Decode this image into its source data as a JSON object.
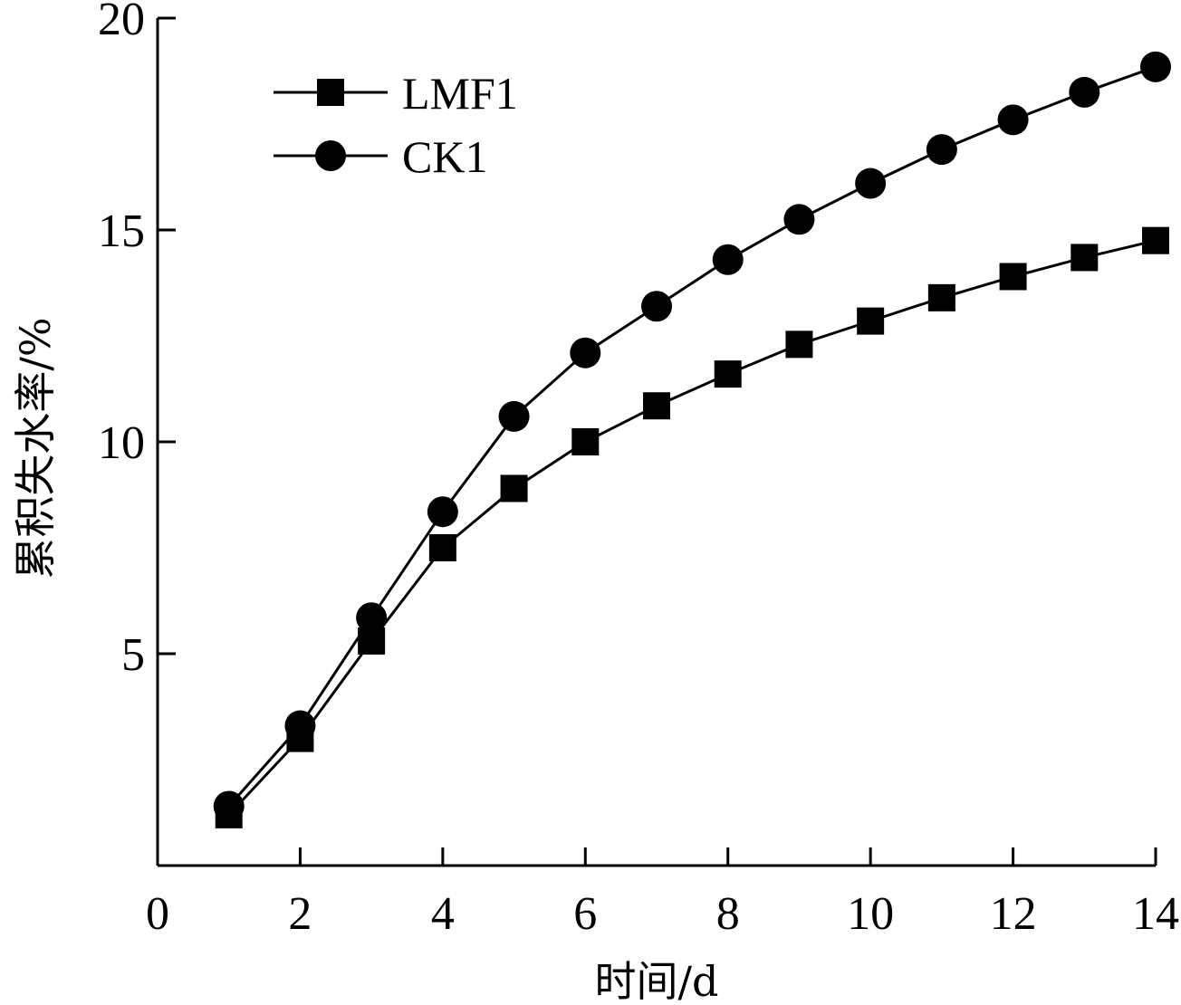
{
  "chart_data": {
    "type": "line",
    "xlabel": "时间/d",
    "ylabel": "累积失水率/%",
    "xlim": [
      0,
      14
    ],
    "ylim": [
      0,
      20
    ],
    "xticks": [
      "0",
      "2",
      "4",
      "6",
      "8",
      "10",
      "12",
      "14"
    ],
    "yticks": [
      "5",
      "10",
      "15",
      "20"
    ],
    "grid": false,
    "legend_position": "top-left",
    "x": [
      1,
      2,
      3,
      4,
      5,
      6,
      7,
      8,
      9,
      10,
      11,
      12,
      13,
      14
    ],
    "series": [
      {
        "name": "LMF1",
        "marker": "square",
        "color": "#000000",
        "values": [
          1.2,
          3.0,
          5.3,
          7.5,
          8.9,
          10.0,
          10.85,
          11.6,
          12.3,
          12.85,
          13.4,
          13.9,
          14.35,
          14.75
        ]
      },
      {
        "name": "CK1",
        "marker": "circle",
        "color": "#000000",
        "values": [
          1.4,
          3.3,
          5.85,
          8.35,
          10.6,
          12.1,
          13.2,
          14.3,
          15.25,
          16.1,
          16.9,
          17.6,
          18.25,
          18.85
        ]
      }
    ]
  }
}
